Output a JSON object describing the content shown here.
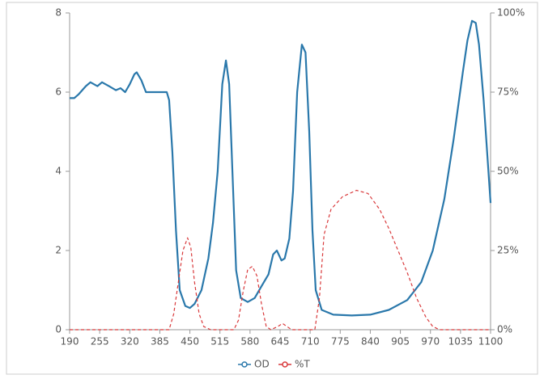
{
  "chart_data": {
    "type": "line",
    "xlim": [
      190,
      1100
    ],
    "xticks": [
      190,
      255,
      320,
      385,
      450,
      515,
      580,
      645,
      710,
      775,
      840,
      905,
      970,
      1035,
      1100
    ],
    "ylim": [
      0,
      8
    ],
    "yticks": [
      0,
      2,
      4,
      6,
      8
    ],
    "y2lim": [
      0,
      100
    ],
    "y2ticks": [
      {
        "value": 0,
        "label": "0%"
      },
      {
        "value": 25,
        "label": "25%"
      },
      {
        "value": 50,
        "label": "50%"
      },
      {
        "value": 75,
        "label": "75%"
      },
      {
        "value": 100,
        "label": "100%"
      }
    ],
    "legend": "bottom",
    "series": [
      {
        "name": "OD",
        "color": "#2a78ab",
        "dashed": false,
        "x": [
          190,
          200,
          210,
          225,
          235,
          250,
          260,
          275,
          290,
          300,
          310,
          320,
          330,
          335,
          345,
          355,
          370,
          385,
          400,
          405,
          412,
          420,
          428,
          440,
          450,
          460,
          475,
          490,
          500,
          510,
          520,
          528,
          535,
          542,
          550,
          560,
          575,
          590,
          605,
          620,
          630,
          638,
          648,
          655,
          665,
          673,
          682,
          692,
          700,
          708,
          715,
          722,
          735,
          760,
          800,
          840,
          880,
          920,
          950,
          975,
          1000,
          1020,
          1040,
          1050,
          1060,
          1068,
          1075,
          1085,
          1100
        ],
        "values": [
          5.85,
          5.85,
          5.95,
          6.15,
          6.25,
          6.15,
          6.25,
          6.15,
          6.05,
          6.1,
          6.0,
          6.2,
          6.45,
          6.5,
          6.3,
          6.0,
          6.0,
          6.0,
          6.0,
          5.8,
          4.5,
          2.5,
          1.0,
          0.6,
          0.55,
          0.65,
          1.0,
          1.8,
          2.7,
          4.0,
          6.2,
          6.8,
          6.2,
          4.0,
          1.5,
          0.8,
          0.7,
          0.8,
          1.1,
          1.4,
          1.9,
          2.0,
          1.75,
          1.8,
          2.3,
          3.5,
          6.0,
          7.2,
          7.0,
          5.0,
          2.5,
          1.0,
          0.5,
          0.38,
          0.36,
          0.38,
          0.5,
          0.75,
          1.2,
          2.0,
          3.3,
          4.8,
          6.5,
          7.3,
          7.8,
          7.75,
          7.2,
          5.8,
          3.2
        ]
      },
      {
        "name": "%T",
        "color": "#d9393b",
        "dashed": true,
        "axis": "y2",
        "x": [
          190,
          405,
          415,
          425,
          435,
          445,
          452,
          460,
          470,
          480,
          495,
          545,
          555,
          565,
          575,
          585,
          595,
          605,
          615,
          625,
          640,
          650,
          660,
          670,
          720,
          730,
          740,
          755,
          780,
          810,
          835,
          860,
          880,
          900,
          920,
          940,
          960,
          975,
          990,
          1100
        ],
        "values": [
          0,
          0,
          5,
          15,
          25,
          29,
          26,
          15,
          5,
          1,
          0,
          0,
          3,
          12,
          19,
          20,
          17,
          8,
          1,
          0,
          1,
          2,
          1,
          0,
          0,
          10,
          30,
          38,
          42,
          44,
          43,
          38,
          32,
          25,
          18,
          10,
          4,
          1,
          0,
          0
        ]
      }
    ]
  }
}
